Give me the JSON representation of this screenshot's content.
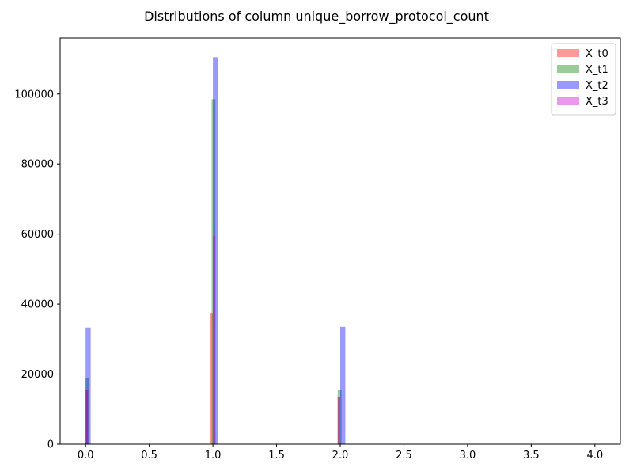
{
  "chart_data": {
    "type": "bar",
    "subtype": "overlaid-histogram",
    "title": "Distributions of column unique_borrow_protocol_count",
    "xlabel": "",
    "ylabel": "",
    "xlim": [
      -0.2,
      4.2
    ],
    "ylim": [
      0,
      116000
    ],
    "x_ticks": [
      0.0,
      0.5,
      1.0,
      1.5,
      2.0,
      2.5,
      3.0,
      3.5,
      4.0
    ],
    "x_tick_labels": [
      "0.0",
      "0.5",
      "1.0",
      "1.5",
      "2.0",
      "2.5",
      "3.0",
      "3.5",
      "4.0"
    ],
    "y_ticks": [
      0,
      20000,
      40000,
      60000,
      80000,
      100000
    ],
    "y_tick_labels": [
      "0",
      "20000",
      "40000",
      "60000",
      "80000",
      "100000"
    ],
    "grid": false,
    "legend": "top-right",
    "series": [
      {
        "name": "X_t0",
        "color": "#ff0000",
        "opacity": 0.4,
        "bins": [
          {
            "x0": 0.0,
            "x1": 0.02,
            "value": 15500
          },
          {
            "x0": 0.98,
            "x1": 1.0,
            "value": 37500
          },
          {
            "x0": 1.98,
            "x1": 2.0,
            "value": 13500
          }
        ]
      },
      {
        "name": "X_t1",
        "color": "#008000",
        "opacity": 0.4,
        "bins": [
          {
            "x0": 0.0,
            "x1": 0.03,
            "value": 18800
          },
          {
            "x0": 0.99,
            "x1": 1.02,
            "value": 98500
          },
          {
            "x0": 1.98,
            "x1": 2.01,
            "value": 15500
          }
        ]
      },
      {
        "name": "X_t2",
        "color": "#0000ff",
        "opacity": 0.4,
        "bins": [
          {
            "x0": 0.0,
            "x1": 0.04,
            "value": 33300
          },
          {
            "x0": 1.0,
            "x1": 1.04,
            "value": 110500
          },
          {
            "x0": 2.0,
            "x1": 2.04,
            "value": 33500
          }
        ]
      },
      {
        "name": "X_t3",
        "color": "#cc00cc",
        "opacity": 0.4,
        "bins": [
          {
            "x0": 0.0,
            "x1": 0.02,
            "value": 15500
          },
          {
            "x0": 1.0,
            "x1": 1.02,
            "value": 59500
          },
          {
            "x0": 1.98,
            "x1": 2.0,
            "value": 13500
          }
        ]
      }
    ]
  }
}
